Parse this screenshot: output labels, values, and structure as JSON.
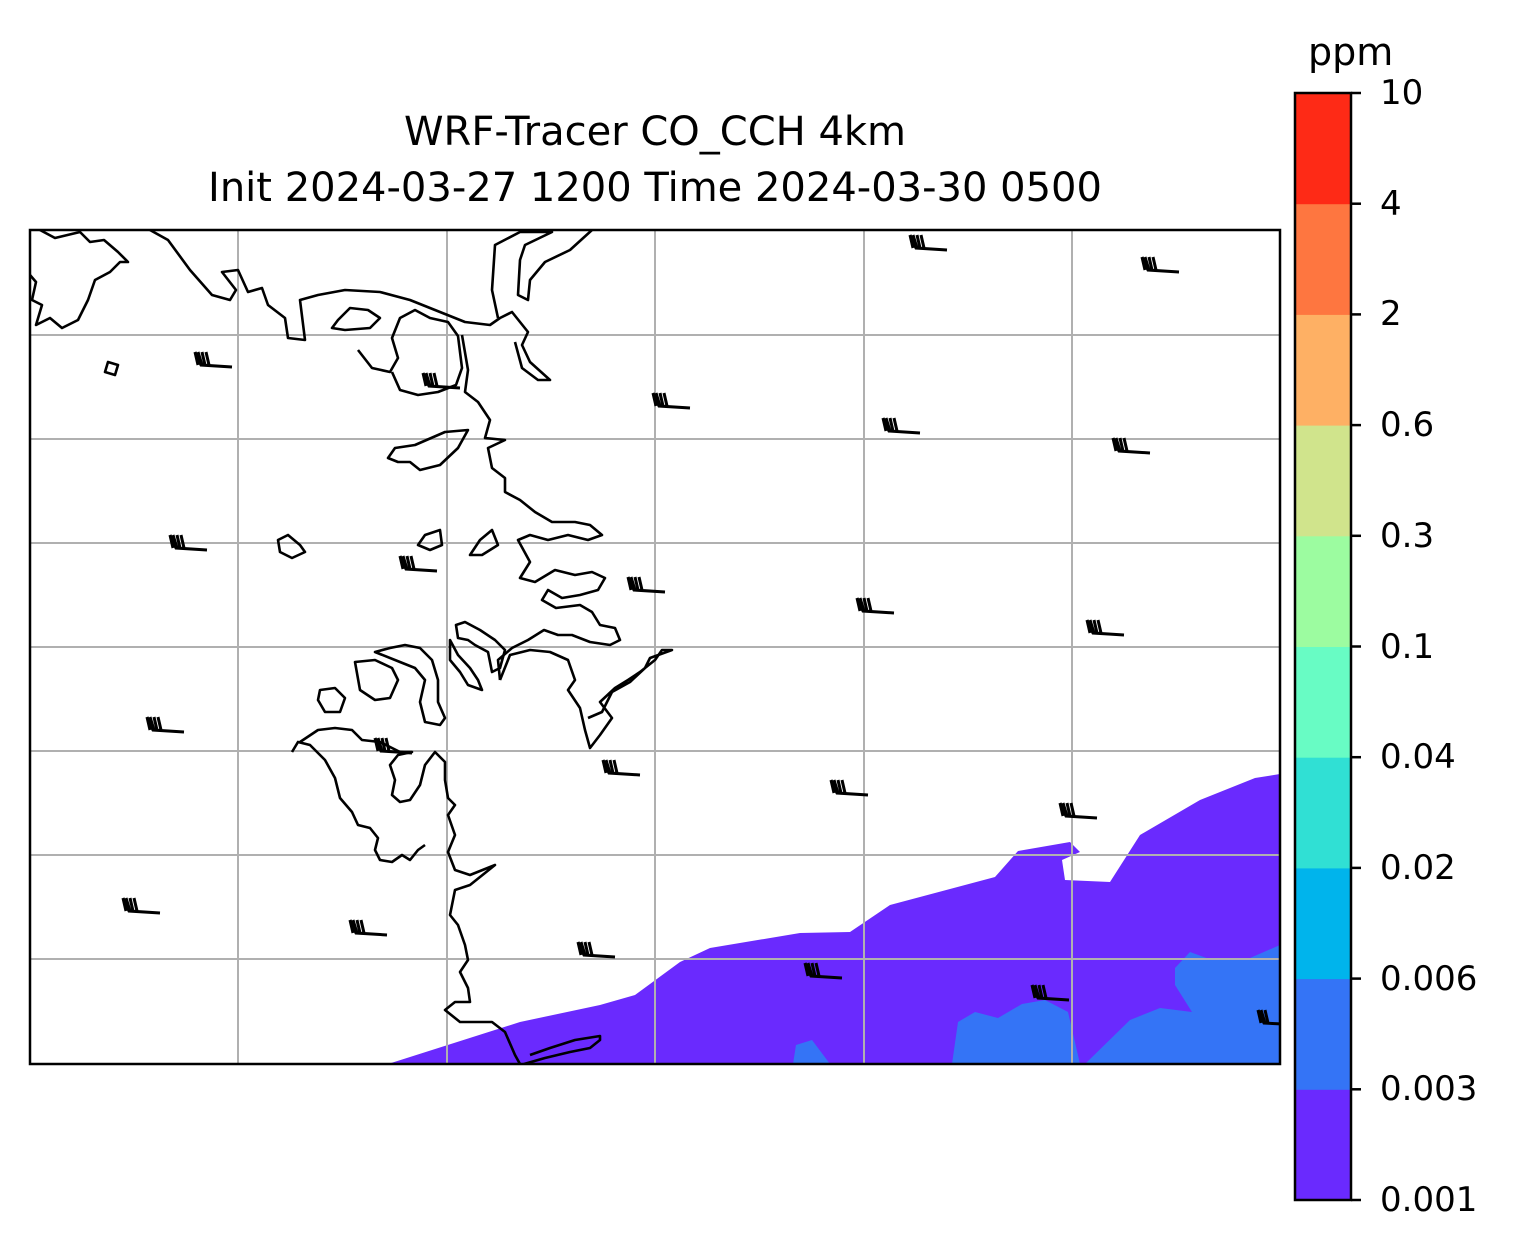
{
  "title_line1": "WRF-Tracer CO_CCH 4km",
  "title_line2": "Init 2024-03-27 1200 Time 2024-03-30 0500",
  "colorbar": {
    "unit": "ppm",
    "levels": [
      "0.001",
      "0.003",
      "0.006",
      "0.02",
      "0.04",
      "0.1",
      "0.3",
      "0.6",
      "2",
      "4",
      "10"
    ],
    "colors": [
      "#6a2afe",
      "#3474f6",
      "#00b4ec",
      "#30e0d4",
      "#68fcc4",
      "#9cfca0",
      "#d0e48c",
      "#feb064",
      "#fe7640",
      "#fe2a16"
    ]
  },
  "field_colors": {
    "low": "#6a2afe",
    "mid": "#3474f6"
  },
  "grid_color": "#b0b0b0",
  "coastline_color": "#000000",
  "wind_barb": {
    "icon": "wind-barb-icon",
    "count": 23
  }
}
